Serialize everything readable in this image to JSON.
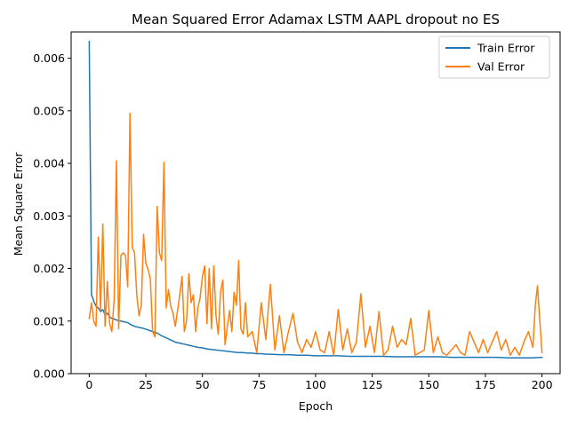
{
  "chart_data": {
    "type": "line",
    "title": "Mean Squared Error  Adamax LSTM AAPL dropout no ES",
    "xlabel": "Epoch",
    "ylabel": "Mean Square Error",
    "xlim": [
      -8,
      208
    ],
    "ylim": [
      0,
      0.0065
    ],
    "xticks": [
      0,
      25,
      50,
      75,
      100,
      125,
      150,
      175,
      200
    ],
    "xtick_labels": [
      "0",
      "25",
      "50",
      "75",
      "100",
      "125",
      "150",
      "175",
      "200"
    ],
    "yticks": [
      0.0,
      0.001,
      0.002,
      0.003,
      0.004,
      0.005,
      0.006
    ],
    "ytick_labels": [
      "0.000",
      "0.001",
      "0.002",
      "0.003",
      "0.004",
      "0.005",
      "0.006"
    ],
    "grid": false,
    "legend_position": "top-right",
    "series": [
      {
        "name": "Train Error",
        "color": "#1f77b4",
        "x": [
          0,
          1,
          2,
          3,
          4,
          5,
          6,
          7,
          8,
          9,
          10,
          11,
          12,
          13,
          14,
          15,
          16,
          17,
          18,
          19,
          20,
          22,
          24,
          26,
          28,
          30,
          32,
          34,
          36,
          38,
          40,
          42,
          44,
          46,
          48,
          50,
          52,
          54,
          56,
          58,
          60,
          62,
          64,
          66,
          68,
          70,
          72,
          74,
          76,
          78,
          80,
          84,
          88,
          92,
          96,
          100,
          105,
          110,
          115,
          120,
          125,
          130,
          135,
          140,
          145,
          150,
          155,
          160,
          165,
          170,
          175,
          180,
          185,
          190,
          195,
          200
        ],
        "values": [
          0.00632,
          0.0015,
          0.00138,
          0.00128,
          0.00125,
          0.00118,
          0.00122,
          0.00112,
          0.00115,
          0.00108,
          0.00105,
          0.00104,
          0.00102,
          0.00101,
          0.001,
          0.00099,
          0.00098,
          0.00097,
          0.00094,
          0.00092,
          0.0009,
          0.00088,
          0.00086,
          0.00083,
          0.0008,
          0.00077,
          0.00072,
          0.00068,
          0.00064,
          0.0006,
          0.00058,
          0.00056,
          0.00054,
          0.00052,
          0.0005,
          0.00049,
          0.00047,
          0.00046,
          0.00045,
          0.00044,
          0.00043,
          0.00042,
          0.00041,
          0.0004,
          0.0004,
          0.00039,
          0.00039,
          0.00038,
          0.00038,
          0.00037,
          0.00037,
          0.00036,
          0.00036,
          0.00035,
          0.00035,
          0.00034,
          0.00034,
          0.00034,
          0.00033,
          0.00033,
          0.00033,
          0.00033,
          0.00032,
          0.00032,
          0.00032,
          0.00032,
          0.00032,
          0.00031,
          0.00031,
          0.00031,
          0.00031,
          0.00031,
          0.0003,
          0.0003,
          0.0003,
          0.00031
        ]
      },
      {
        "name": "Val Error",
        "color": "#ff7f0e",
        "x": [
          0,
          1,
          2,
          3,
          4,
          5,
          6,
          7,
          8,
          9,
          10,
          11,
          12,
          13,
          14,
          15,
          16,
          17,
          18,
          19,
          20,
          21,
          22,
          23,
          24,
          25,
          26,
          27,
          28,
          29,
          30,
          31,
          32,
          33,
          34,
          35,
          36,
          37,
          38,
          39,
          40,
          41,
          42,
          43,
          44,
          45,
          46,
          47,
          48,
          49,
          50,
          51,
          52,
          53,
          54,
          55,
          56,
          57,
          58,
          59,
          60,
          61,
          62,
          63,
          64,
          65,
          66,
          67,
          68,
          69,
          70,
          72,
          74,
          76,
          78,
          80,
          82,
          84,
          86,
          88,
          90,
          92,
          94,
          96,
          98,
          100,
          102,
          104,
          106,
          108,
          110,
          112,
          114,
          116,
          118,
          120,
          122,
          124,
          126,
          128,
          130,
          132,
          134,
          136,
          138,
          140,
          142,
          144,
          146,
          148,
          150,
          152,
          154,
          156,
          158,
          160,
          162,
          164,
          166,
          168,
          170,
          172,
          174,
          176,
          178,
          180,
          182,
          184,
          186,
          188,
          190,
          192,
          194,
          196,
          197,
          198,
          200
        ],
        "values": [
          0.00105,
          0.00135,
          0.001,
          0.0009,
          0.0026,
          0.0012,
          0.00285,
          0.0009,
          0.00175,
          0.00095,
          0.0008,
          0.0014,
          0.00405,
          0.00085,
          0.00225,
          0.0023,
          0.00225,
          0.00165,
          0.00495,
          0.0024,
          0.0023,
          0.0015,
          0.0011,
          0.0013,
          0.00265,
          0.0021,
          0.00198,
          0.0018,
          0.0008,
          0.0007,
          0.00318,
          0.0023,
          0.00215,
          0.00402,
          0.00125,
          0.0016,
          0.00128,
          0.00115,
          0.0009,
          0.0012,
          0.0015,
          0.00185,
          0.0008,
          0.001,
          0.0019,
          0.00135,
          0.0015,
          0.0008,
          0.00125,
          0.00145,
          0.00185,
          0.00205,
          0.00095,
          0.002,
          0.00085,
          0.00205,
          0.0011,
          0.00075,
          0.00155,
          0.00178,
          0.00055,
          0.0009,
          0.0012,
          0.0008,
          0.00155,
          0.0013,
          0.00215,
          0.00085,
          0.00075,
          0.00135,
          0.0007,
          0.0008,
          0.0004,
          0.00135,
          0.00065,
          0.0017,
          0.00045,
          0.0011,
          0.0004,
          0.0008,
          0.00115,
          0.0006,
          0.0004,
          0.00065,
          0.0005,
          0.0008,
          0.00045,
          0.0004,
          0.0008,
          0.00035,
          0.00122,
          0.00045,
          0.00085,
          0.0004,
          0.0006,
          0.00152,
          0.0005,
          0.0009,
          0.0004,
          0.00118,
          0.00035,
          0.00045,
          0.0009,
          0.0005,
          0.00065,
          0.00055,
          0.00105,
          0.00035,
          0.0004,
          0.00045,
          0.0012,
          0.0004,
          0.0007,
          0.0004,
          0.00035,
          0.00045,
          0.00055,
          0.0004,
          0.00035,
          0.0008,
          0.0006,
          0.0004,
          0.00065,
          0.0004,
          0.0006,
          0.0008,
          0.00045,
          0.00065,
          0.00035,
          0.0005,
          0.00035,
          0.0006,
          0.0008,
          0.0005,
          0.00128,
          0.00167,
          0.0004
        ]
      }
    ]
  }
}
